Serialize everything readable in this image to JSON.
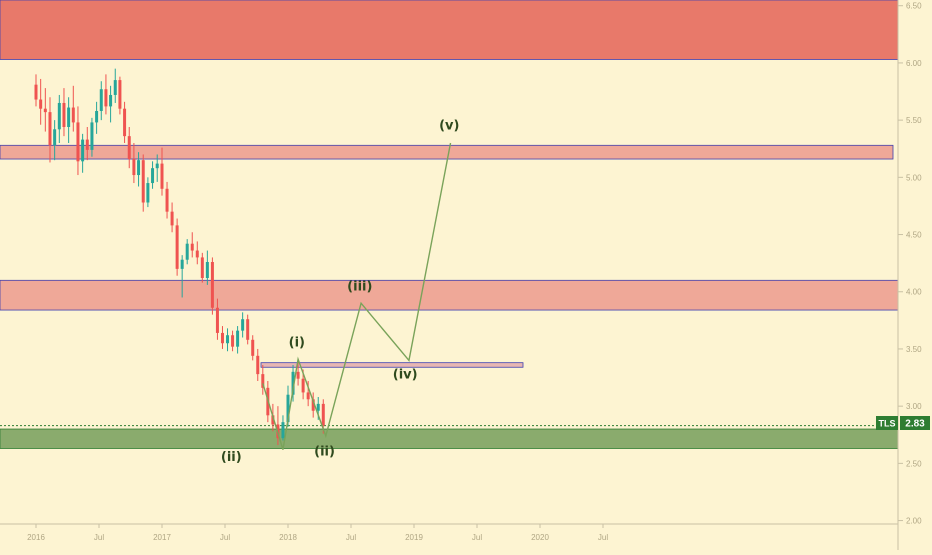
{
  "chart_data": {
    "type": "candlestick",
    "title": "",
    "xlabel": "",
    "ylabel": "",
    "x_ticks": [
      "2016",
      "Jul",
      "2017",
      "Jul",
      "2018",
      "Jul",
      "2019",
      "Jul",
      "2020",
      "Jul"
    ],
    "y_ticks": [
      "6.50",
      "6.00",
      "5.50",
      "5.00",
      "4.50",
      "4.00",
      "3.50",
      "3.00",
      "2.50",
      "2.00"
    ],
    "ylim": [
      1.97,
      6.55
    ],
    "price_label": {
      "symbol": "TLS",
      "value": "2.83"
    },
    "colors": {
      "up": "#26a69a",
      "down": "#ef5350",
      "zone_red": "#e8796a",
      "zone_pink": "#efa898",
      "zone_green": "#8aab6d",
      "wave": "#7aa35a"
    },
    "candles": [
      {
        "t": 0.0,
        "o": 5.81,
        "h": 5.9,
        "l": 5.62,
        "c": 5.68
      },
      {
        "t": 0.037,
        "o": 5.68,
        "h": 5.86,
        "l": 5.46,
        "c": 5.6
      },
      {
        "t": 0.074,
        "o": 5.6,
        "h": 5.78,
        "l": 5.4,
        "c": 5.57
      },
      {
        "t": 0.111,
        "o": 5.57,
        "h": 5.7,
        "l": 5.13,
        "c": 5.28
      },
      {
        "t": 0.148,
        "o": 5.28,
        "h": 5.5,
        "l": 5.15,
        "c": 5.42
      },
      {
        "t": 0.185,
        "o": 5.42,
        "h": 5.72,
        "l": 5.3,
        "c": 5.65
      },
      {
        "t": 0.222,
        "o": 5.65,
        "h": 5.78,
        "l": 5.36,
        "c": 5.44
      },
      {
        "t": 0.259,
        "o": 5.44,
        "h": 5.7,
        "l": 5.3,
        "c": 5.61
      },
      {
        "t": 0.296,
        "o": 5.61,
        "h": 5.8,
        "l": 5.4,
        "c": 5.48
      },
      {
        "t": 0.333,
        "o": 5.48,
        "h": 5.62,
        "l": 5.02,
        "c": 5.14
      },
      {
        "t": 0.37,
        "o": 5.14,
        "h": 5.38,
        "l": 5.04,
        "c": 5.33
      },
      {
        "t": 0.407,
        "o": 5.33,
        "h": 5.44,
        "l": 5.15,
        "c": 5.24
      },
      {
        "t": 0.444,
        "o": 5.24,
        "h": 5.52,
        "l": 5.18,
        "c": 5.48
      },
      {
        "t": 0.481,
        "o": 5.48,
        "h": 5.66,
        "l": 5.38,
        "c": 5.58
      },
      {
        "t": 0.518,
        "o": 5.58,
        "h": 5.84,
        "l": 5.5,
        "c": 5.77
      },
      {
        "t": 0.555,
        "o": 5.77,
        "h": 5.9,
        "l": 5.55,
        "c": 5.62
      },
      {
        "t": 0.592,
        "o": 5.62,
        "h": 5.8,
        "l": 5.48,
        "c": 5.72
      },
      {
        "t": 0.629,
        "o": 5.72,
        "h": 5.95,
        "l": 5.65,
        "c": 5.85
      },
      {
        "t": 0.666,
        "o": 5.85,
        "h": 5.88,
        "l": 5.55,
        "c": 5.6
      },
      {
        "t": 0.703,
        "o": 5.6,
        "h": 5.66,
        "l": 5.3,
        "c": 5.36
      },
      {
        "t": 0.74,
        "o": 5.36,
        "h": 5.44,
        "l": 5.08,
        "c": 5.16
      },
      {
        "t": 0.777,
        "o": 5.16,
        "h": 5.3,
        "l": 4.95,
        "c": 5.02
      },
      {
        "t": 0.814,
        "o": 5.02,
        "h": 5.22,
        "l": 4.92,
        "c": 5.15
      },
      {
        "t": 0.851,
        "o": 5.15,
        "h": 5.2,
        "l": 4.7,
        "c": 4.78
      },
      {
        "t": 0.888,
        "o": 4.78,
        "h": 5.0,
        "l": 4.74,
        "c": 4.95
      },
      {
        "t": 0.925,
        "o": 4.95,
        "h": 5.14,
        "l": 4.9,
        "c": 5.08
      },
      {
        "t": 0.962,
        "o": 5.08,
        "h": 5.2,
        "l": 4.96,
        "c": 5.12
      },
      {
        "t": 1.0,
        "o": 5.12,
        "h": 5.26,
        "l": 4.84,
        "c": 4.9
      },
      {
        "t": 1.04,
        "o": 4.9,
        "h": 4.96,
        "l": 4.64,
        "c": 4.7
      },
      {
        "t": 1.08,
        "o": 4.7,
        "h": 4.78,
        "l": 4.52,
        "c": 4.58
      },
      {
        "t": 1.12,
        "o": 4.58,
        "h": 4.64,
        "l": 4.14,
        "c": 4.2
      },
      {
        "t": 1.16,
        "o": 4.2,
        "h": 4.32,
        "l": 3.95,
        "c": 4.28
      },
      {
        "t": 1.2,
        "o": 4.28,
        "h": 4.46,
        "l": 4.24,
        "c": 4.42
      },
      {
        "t": 1.24,
        "o": 4.42,
        "h": 4.52,
        "l": 4.3,
        "c": 4.36
      },
      {
        "t": 1.28,
        "o": 4.36,
        "h": 4.44,
        "l": 4.24,
        "c": 4.3
      },
      {
        "t": 1.32,
        "o": 4.3,
        "h": 4.34,
        "l": 4.08,
        "c": 4.12
      },
      {
        "t": 1.36,
        "o": 4.12,
        "h": 4.36,
        "l": 4.06,
        "c": 4.26
      },
      {
        "t": 1.4,
        "o": 4.26,
        "h": 4.3,
        "l": 3.8,
        "c": 3.86
      },
      {
        "t": 1.44,
        "o": 3.86,
        "h": 3.94,
        "l": 3.58,
        "c": 3.64
      },
      {
        "t": 1.48,
        "o": 3.64,
        "h": 3.7,
        "l": 3.5,
        "c": 3.55
      },
      {
        "t": 1.52,
        "o": 3.55,
        "h": 3.68,
        "l": 3.48,
        "c": 3.62
      },
      {
        "t": 1.56,
        "o": 3.62,
        "h": 3.66,
        "l": 3.48,
        "c": 3.52
      },
      {
        "t": 1.6,
        "o": 3.52,
        "h": 3.7,
        "l": 3.46,
        "c": 3.66
      },
      {
        "t": 1.64,
        "o": 3.66,
        "h": 3.82,
        "l": 3.6,
        "c": 3.76
      },
      {
        "t": 1.68,
        "o": 3.76,
        "h": 3.8,
        "l": 3.54,
        "c": 3.58
      },
      {
        "t": 1.72,
        "o": 3.58,
        "h": 3.62,
        "l": 3.4,
        "c": 3.44
      },
      {
        "t": 1.76,
        "o": 3.44,
        "h": 3.5,
        "l": 3.22,
        "c": 3.28
      },
      {
        "t": 1.8,
        "o": 3.28,
        "h": 3.36,
        "l": 3.1,
        "c": 3.16
      },
      {
        "t": 1.84,
        "o": 3.16,
        "h": 3.22,
        "l": 2.86,
        "c": 2.92
      },
      {
        "t": 1.88,
        "o": 2.92,
        "h": 3.02,
        "l": 2.78,
        "c": 2.84
      },
      {
        "t": 1.92,
        "o": 2.84,
        "h": 3.0,
        "l": 2.66,
        "c": 2.72
      },
      {
        "t": 1.96,
        "o": 2.72,
        "h": 2.92,
        "l": 2.7,
        "c": 2.86
      },
      {
        "t": 2.0,
        "o": 2.86,
        "h": 3.18,
        "l": 2.82,
        "c": 3.1
      },
      {
        "t": 2.04,
        "o": 3.1,
        "h": 3.36,
        "l": 3.04,
        "c": 3.3
      },
      {
        "t": 2.08,
        "o": 3.3,
        "h": 3.41,
        "l": 3.18,
        "c": 3.24
      },
      {
        "t": 2.12,
        "o": 3.24,
        "h": 3.32,
        "l": 3.06,
        "c": 3.12
      },
      {
        "t": 2.16,
        "o": 3.12,
        "h": 3.22,
        "l": 3.0,
        "c": 3.06
      },
      {
        "t": 2.2,
        "o": 3.06,
        "h": 3.12,
        "l": 2.9,
        "c": 2.96
      },
      {
        "t": 2.24,
        "o": 2.96,
        "h": 3.08,
        "l": 2.88,
        "c": 3.02
      },
      {
        "t": 2.28,
        "o": 3.02,
        "h": 3.06,
        "l": 2.76,
        "c": 2.83
      }
    ],
    "zones": [
      {
        "name": "resistance-top",
        "y_top": 6.55,
        "y_bottom": 6.03,
        "color": "#e8796a"
      },
      {
        "name": "resistance-upper",
        "y_top": 5.28,
        "y_bottom": 5.16,
        "color": "#efa898"
      },
      {
        "name": "resistance-mid",
        "y_top": 4.1,
        "y_bottom": 3.84,
        "color": "#efa898"
      },
      {
        "name": "wave-i-level",
        "y_top": 3.38,
        "y_bottom": 3.34,
        "color": "#e7b6b2"
      },
      {
        "name": "support",
        "y_top": 2.8,
        "y_bottom": 2.63,
        "color": "#8aab6d"
      }
    ],
    "wave_path": [
      {
        "t": 1.8,
        "p": 3.2
      },
      {
        "t": 1.96,
        "p": 2.62
      },
      {
        "t": 2.08,
        "p": 3.41
      },
      {
        "t": 2.3,
        "p": 2.74
      },
      {
        "t": 2.58,
        "p": 3.9
      },
      {
        "t": 2.96,
        "p": 3.4
      },
      {
        "t": 3.29,
        "p": 5.3
      }
    ],
    "wave_labels": [
      {
        "text": "(i)",
        "t": 2.07,
        "p": 3.52
      },
      {
        "text": "(ii)",
        "t": 1.55,
        "p": 2.52
      },
      {
        "text": "(ii)",
        "t": 2.29,
        "p": 2.57
      },
      {
        "text": "(iii)",
        "t": 2.57,
        "p": 4.01
      },
      {
        "text": "(iv)",
        "t": 2.93,
        "p": 3.24
      },
      {
        "text": "(v)",
        "t": 3.28,
        "p": 5.42
      }
    ]
  }
}
